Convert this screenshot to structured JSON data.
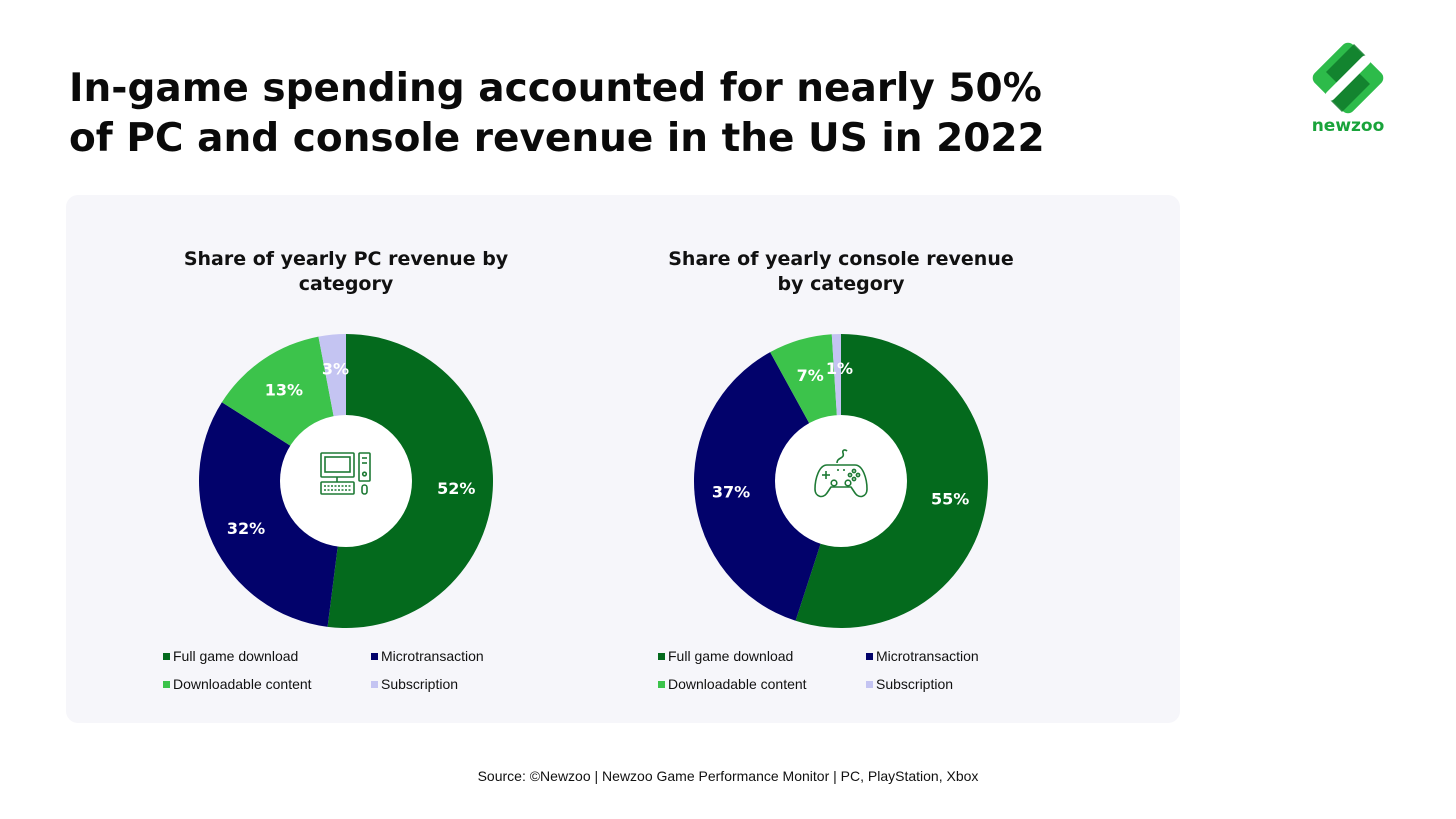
{
  "header": {
    "title_line1": "In-game spending accounted for nearly 50%",
    "title_line2": "of PC and console revenue in the US in 2022"
  },
  "brand": {
    "logo_text": "newzoo",
    "color_light": "#2dbb4a",
    "color_dark": "#0f7a2a"
  },
  "colors": {
    "full_game_download": "#046a1d",
    "microtransaction": "#02026b",
    "downloadable_content": "#3cc34b",
    "subscription": "#c4c4f2",
    "icon": "#1e7a35"
  },
  "chart_data": [
    {
      "type": "pie",
      "variant": "donut",
      "title_line1": "Share of yearly PC revenue by",
      "title_line2": "category",
      "center_icon": "desktop-computer-icon",
      "categories": [
        "Full game download",
        "Microtransaction",
        "Downloadable content",
        "Subscription"
      ],
      "values": [
        52,
        32,
        13,
        3
      ],
      "labels": [
        "52%",
        "32%",
        "13%",
        "3%"
      ],
      "legend_position": "bottom"
    },
    {
      "type": "pie",
      "variant": "donut",
      "title_line1": "Share of yearly console revenue",
      "title_line2": "by category",
      "center_icon": "gamepad-icon",
      "categories": [
        "Full game download",
        "Microtransaction",
        "Downloadable content",
        "Subscription"
      ],
      "values": [
        55,
        37,
        7,
        1
      ],
      "labels": [
        "55%",
        "37%",
        "7%",
        "1%"
      ],
      "legend_position": "bottom"
    }
  ],
  "footer": {
    "source": "Source: ©Newzoo | Newzoo Game Performance Monitor | PC, PlayStation, Xbox"
  }
}
